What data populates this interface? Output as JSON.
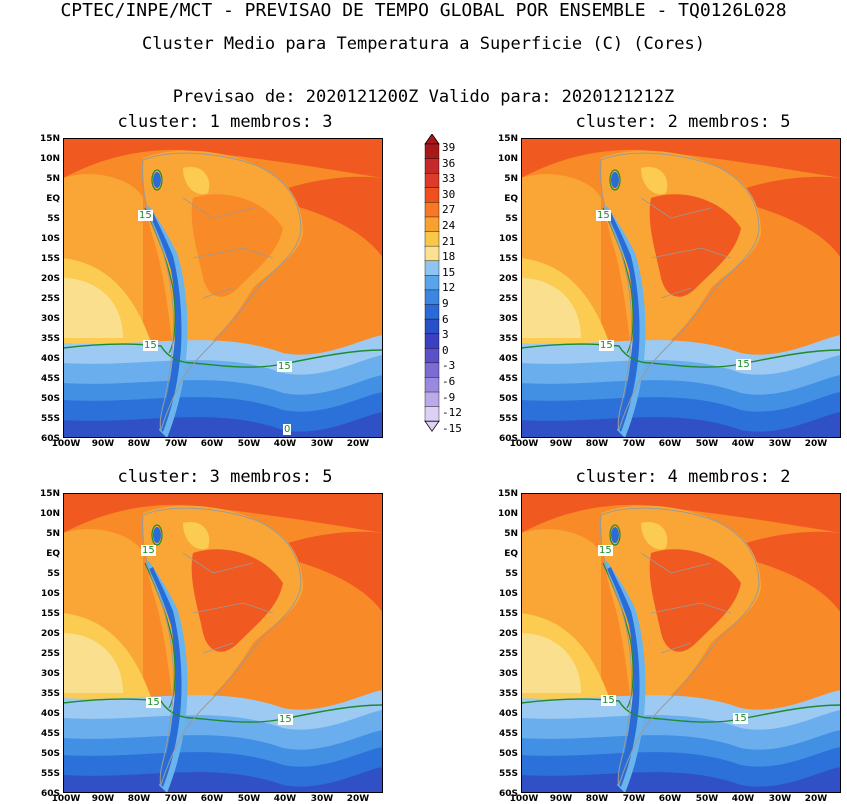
{
  "header": {
    "title": "CPTEC/INPE/MCT - PREVISAO DE TEMPO GLOBAL POR ENSEMBLE - TQ0126L028",
    "subtitle": "Cluster Medio para Temperatura a Superficie (C) (Cores)",
    "forecast_line": "Previsao de: 2020121200Z   Valido para: 2020121212Z"
  },
  "panels": [
    {
      "title": "cluster: 1  membros: 3"
    },
    {
      "title": "cluster: 2  membros: 5"
    },
    {
      "title": "cluster: 3  membros: 5"
    },
    {
      "title": "cluster: 4  membros: 2"
    }
  ],
  "axes": {
    "lat_labels": [
      "15N",
      "10N",
      "5N",
      "EQ",
      "5S",
      "10S",
      "15S",
      "20S",
      "25S",
      "30S",
      "35S",
      "40S",
      "45S",
      "50S",
      "55S",
      "60S"
    ],
    "lon_labels": [
      "100W",
      "90W",
      "80W",
      "70W",
      "60W",
      "50W",
      "40W",
      "30W",
      "20W"
    ]
  },
  "contour_labels": {
    "p1": [
      "15",
      "15",
      "15",
      "0"
    ],
    "p2": [
      "15",
      "15",
      "15"
    ],
    "p3": [
      "15",
      "15",
      "15"
    ],
    "p4": [
      "15",
      "15",
      "15"
    ]
  },
  "colorbar": {
    "labels": [
      "39",
      "36",
      "33",
      "30",
      "27",
      "24",
      "21",
      "18",
      "15",
      "12",
      "9",
      "6",
      "3",
      "0",
      "-3",
      "-6",
      "-9",
      "-12",
      "-15"
    ],
    "colors": [
      "#a81818",
      "#c42a2a",
      "#dc3c28",
      "#f0501e",
      "#f87828",
      "#f8a030",
      "#fac848",
      "#fae290",
      "#8ec4f0",
      "#5aa4ec",
      "#3c86e0",
      "#2a6ad8",
      "#2850c8",
      "#3a40c0",
      "#5a50c8",
      "#7a6cd2",
      "#9a8ade",
      "#bcaae8",
      "#dcd0f4"
    ]
  },
  "map_colors": {
    "hot": "#f05a20",
    "warm": "#f88a28",
    "mild": "#faa636",
    "cool": "#fbcb52",
    "pale": "#fae08e",
    "sea_cold1": "#9ccaf2",
    "sea_cold2": "#6aaeee",
    "sea_cold3": "#4290e4",
    "sea_cold4": "#2c70da",
    "sea_cold5": "#3050c6",
    "andes": "#2a6cd6",
    "andes_light": "#6ab4ee",
    "contour": "#1f8a2e"
  }
}
